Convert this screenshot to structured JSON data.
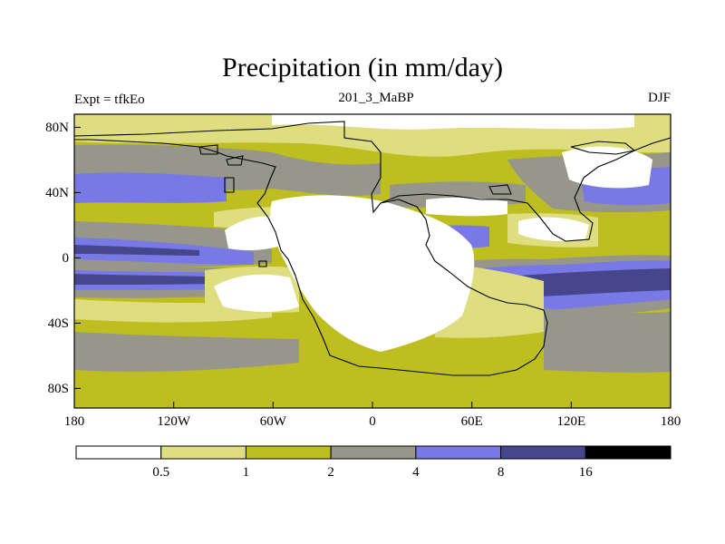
{
  "title": "Precipitation (in mm/day)",
  "left_label": "Expt = tfkEo",
  "center_label": "201_3_MaBP",
  "right_label": "DJF",
  "axes": {
    "x_ticks": [
      "180",
      "120W",
      "60W",
      "0",
      "60E",
      "120E",
      "180"
    ],
    "y_ticks": [
      "80N",
      "40N",
      "0",
      "40S",
      "80S"
    ]
  },
  "colorbar": {
    "labels": [
      "0.5",
      "1",
      "2",
      "4",
      "8",
      "16"
    ],
    "colors": [
      "#ffffff",
      "#dede80",
      "#bebe20",
      "#96968a",
      "#7878e6",
      "#46468c",
      "#000000"
    ]
  }
}
